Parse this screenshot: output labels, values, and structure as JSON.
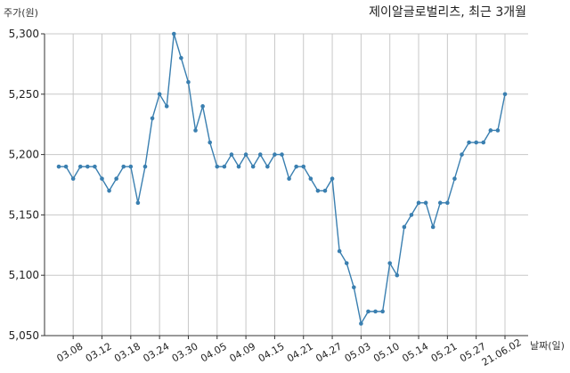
{
  "chart_data": {
    "type": "line",
    "title": "제이알글로벌리츠, 최근 3개월",
    "ylabel": "주가(원)",
    "xlabel": "날짜(일)",
    "ylim": [
      5050,
      5300
    ],
    "yticks": [
      5050,
      5100,
      5150,
      5200,
      5250,
      5300
    ],
    "ytick_labels": [
      "5,050",
      "5,100",
      "5,150",
      "5,200",
      "5,250",
      "5,300"
    ],
    "grid": true,
    "color": "#3a7fb0",
    "xtick_labels": [
      "03.08",
      "03.12",
      "03.18",
      "03.24",
      "03.30",
      "04.05",
      "04.09",
      "04.15",
      "04.21",
      "04.27",
      "05.03",
      "05.10",
      "05.14",
      "05.21",
      "05.27",
      "21.06.02"
    ],
    "xtick_index": [
      2,
      6,
      10,
      14,
      18,
      22,
      26,
      30,
      34,
      38,
      42,
      46,
      50,
      54,
      58,
      62
    ],
    "series": [
      {
        "values": [
          5190,
          5190,
          5180,
          5190,
          5190,
          5190,
          5180,
          5170,
          5180,
          5190,
          5190,
          5160,
          5190,
          5230,
          5250,
          5240,
          5300,
          5280,
          5260,
          5220,
          5240,
          5210,
          5190,
          5190,
          5200,
          5190,
          5200,
          5190,
          5200,
          5190,
          5200,
          5200,
          5180,
          5190,
          5190,
          5180,
          5170,
          5170,
          5180,
          5120,
          5110,
          5090,
          5060,
          5070,
          5070,
          5070,
          5110,
          5100,
          5140,
          5150,
          5160,
          5160,
          5140,
          5160,
          5160,
          5180,
          5200,
          5210,
          5210,
          5210,
          5220,
          5220,
          5250
        ]
      }
    ]
  }
}
